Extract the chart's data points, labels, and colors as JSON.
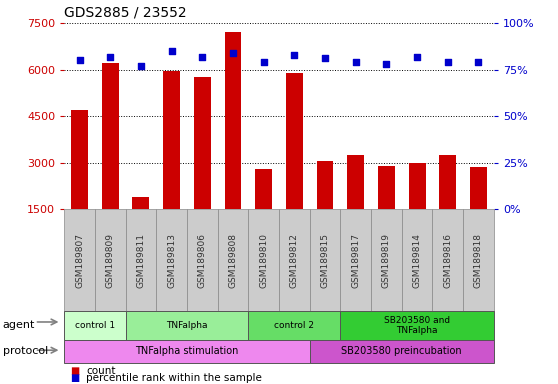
{
  "title": "GDS2885 / 23552",
  "samples": [
    "GSM189807",
    "GSM189809",
    "GSM189811",
    "GSM189813",
    "GSM189806",
    "GSM189808",
    "GSM189810",
    "GSM189812",
    "GSM189815",
    "GSM189817",
    "GSM189819",
    "GSM189814",
    "GSM189816",
    "GSM189818"
  ],
  "counts": [
    4700,
    6200,
    1900,
    5950,
    5750,
    7200,
    2800,
    5900,
    3050,
    3250,
    2900,
    3000,
    3250,
    2850
  ],
  "percentiles": [
    80,
    82,
    77,
    85,
    82,
    84,
    79,
    83,
    81,
    79,
    78,
    82,
    79,
    79
  ],
  "ylim_left": [
    1500,
    7500
  ],
  "ylim_right": [
    0,
    100
  ],
  "yticks_left": [
    1500,
    3000,
    4500,
    6000,
    7500
  ],
  "yticks_right": [
    0,
    25,
    50,
    75,
    100
  ],
  "bar_color": "#cc0000",
  "dot_color": "#0000cc",
  "grid_color": "#000000",
  "agent_groups": [
    {
      "label": "control 1",
      "start": 0,
      "end": 2,
      "color": "#ccffcc"
    },
    {
      "label": "TNFalpha",
      "start": 2,
      "end": 6,
      "color": "#99ee99"
    },
    {
      "label": "control 2",
      "start": 6,
      "end": 9,
      "color": "#66dd66"
    },
    {
      "label": "SB203580 and\nTNFalpha",
      "start": 9,
      "end": 14,
      "color": "#33cc33"
    }
  ],
  "protocol_groups": [
    {
      "label": "TNFalpha stimulation",
      "start": 0,
      "end": 8,
      "color": "#ee88ee"
    },
    {
      "label": "SB203580 preincubation",
      "start": 8,
      "end": 14,
      "color": "#cc55cc"
    }
  ],
  "left_axis_color": "#cc0000",
  "right_axis_color": "#0000cc",
  "xlabel_bg": "#cccccc",
  "xlabel_color": "#333333"
}
